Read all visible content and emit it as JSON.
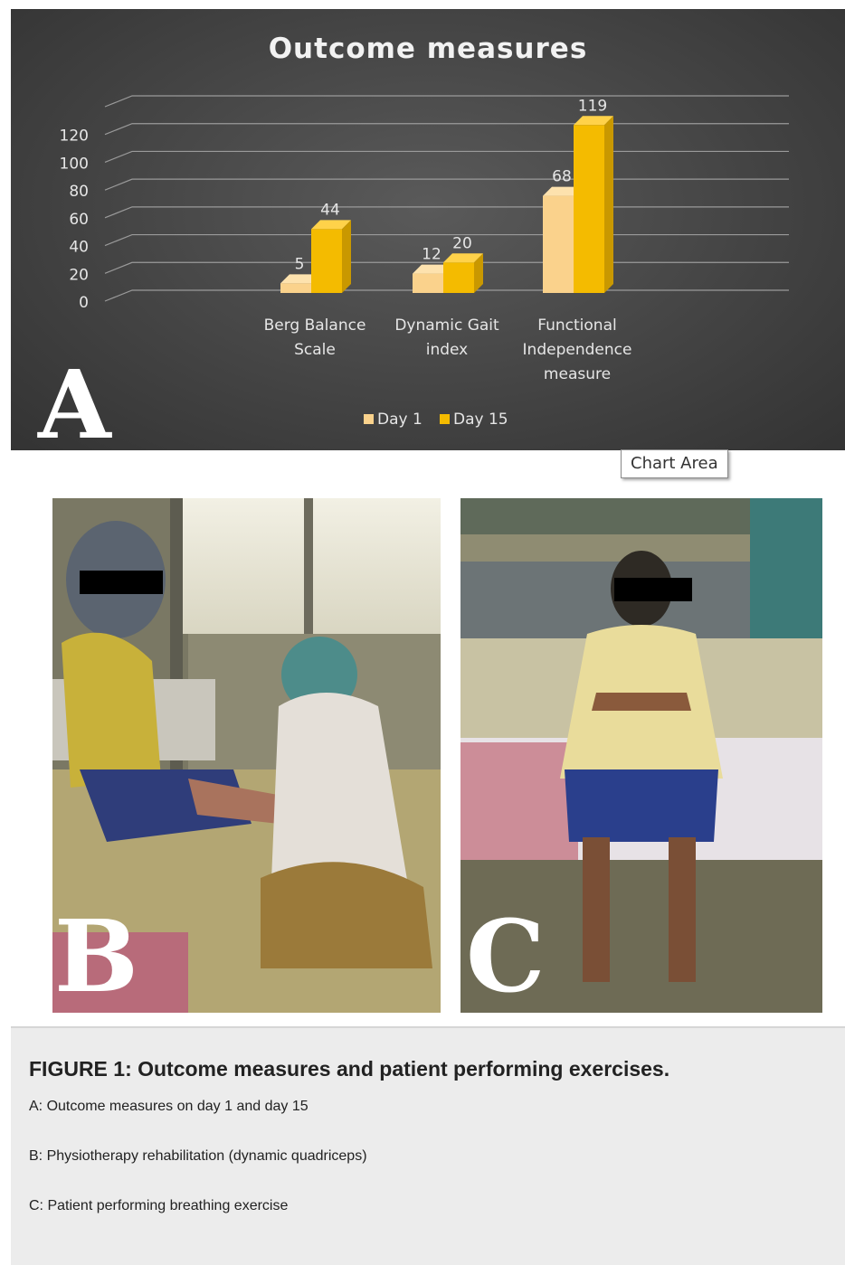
{
  "chart_data": {
    "type": "bar",
    "title": "Outcome measures",
    "categories": [
      [
        "Berg Balance",
        "Scale"
      ],
      [
        "Dynamic Gait",
        "index"
      ],
      [
        "Functional",
        "Independence",
        "measure"
      ]
    ],
    "series": [
      {
        "name": "Day 1",
        "values": [
          5,
          12,
          68
        ],
        "color": "#fad28c"
      },
      {
        "name": "Day 15",
        "values": [
          44,
          20,
          119
        ],
        "color": "#f4bb00"
      }
    ],
    "y_ticks": [
      "0",
      "20",
      "40",
      "60",
      "80",
      "100",
      "120"
    ],
    "ylim": [
      0,
      140
    ],
    "grid": true,
    "legend_position": "bottom",
    "style": "3d-column",
    "background": "#444444"
  },
  "panels": {
    "a_label": "A",
    "b_label": "B",
    "c_label": "C"
  },
  "tooltip": {
    "label": "Chart Area"
  },
  "caption": {
    "title": "FIGURE 1: Outcome measures and patient performing exercises.",
    "lines": [
      "A: Outcome measures on day 1 and day 15",
      "B: Physiotherapy rehabilitation (dynamic quadriceps)",
      "C: Patient performing breathing exercise"
    ]
  }
}
